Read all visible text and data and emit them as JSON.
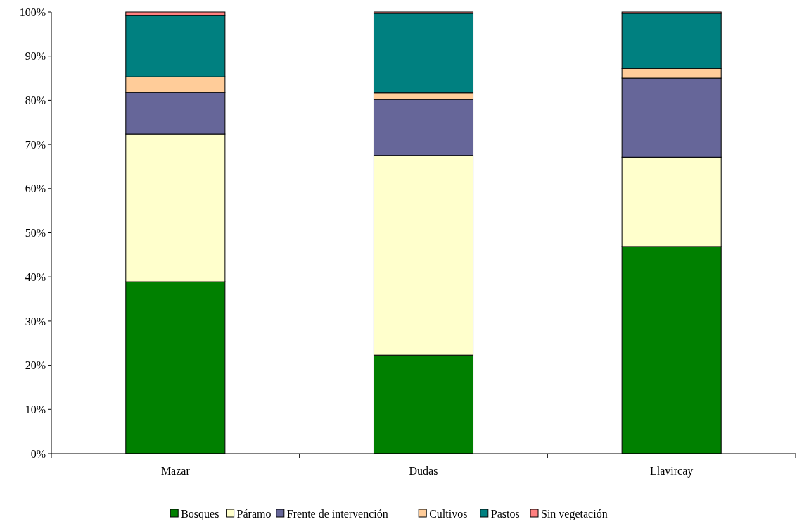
{
  "chart_data": {
    "type": "bar",
    "stacked": true,
    "categories": [
      "Mazar",
      "Dudas",
      "Llavircay"
    ],
    "series": [
      {
        "name": "Bosques",
        "color": "#008000",
        "values": [
          38.9,
          22.3,
          46.9
        ]
      },
      {
        "name": "Páramo",
        "color": "#ffffcc",
        "values": [
          33.5,
          45.2,
          20.2
        ]
      },
      {
        "name": "Frente de intervención",
        "color": "#666699",
        "values": [
          9.4,
          12.7,
          17.9
        ]
      },
      {
        "name": "Cultivos",
        "color": "#ffcc99",
        "values": [
          3.5,
          1.5,
          2.2
        ]
      },
      {
        "name": "Pastos",
        "color": "#008080",
        "values": [
          13.9,
          18.0,
          12.5
        ]
      },
      {
        "name": "Sin vegetación",
        "color": "#ff8080",
        "values": [
          0.8,
          0.3,
          0.3
        ]
      }
    ],
    "ylim": [
      0,
      100
    ],
    "yticks": [
      {
        "value": 0,
        "label": "0%"
      },
      {
        "value": 10,
        "label": "10%"
      },
      {
        "value": 20,
        "label": "20%"
      },
      {
        "value": 30,
        "label": "30%"
      },
      {
        "value": 40,
        "label": "40%"
      },
      {
        "value": 50,
        "label": "50%"
      },
      {
        "value": 60,
        "label": "60%"
      },
      {
        "value": 70,
        "label": "70%"
      },
      {
        "value": 80,
        "label": "80%"
      },
      {
        "value": 90,
        "label": "90%"
      },
      {
        "value": 100,
        "label": "100%"
      }
    ],
    "grid": false,
    "legend": "bottom"
  }
}
